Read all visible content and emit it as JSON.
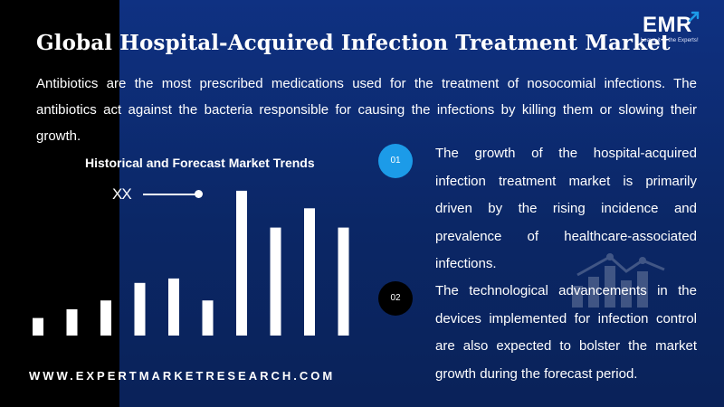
{
  "header": {
    "title": "Global Hospital-Acquired Infection Treatment Market",
    "intro": "Antibiotics are the most prescribed medications used for the treatment of nosocomial infections. The antibiotics act against the bacteria responsible for causing the infections by killing them or slowing their growth."
  },
  "logo": {
    "name": "EMR",
    "tagline": "Leave it to the Experts!"
  },
  "chart_data": {
    "type": "bar",
    "title": "Historical and Forecast Market Trends",
    "legend": [
      "XX"
    ],
    "series": [
      {
        "name": "XX",
        "values": [
          2,
          3,
          4,
          6,
          6.5,
          4,
          16.5,
          12.3,
          14.5,
          12.3
        ]
      }
    ],
    "xlabel": "",
    "ylabel": "",
    "ylim": [
      0,
      17
    ],
    "grid": false,
    "bar_color": "#ffffff"
  },
  "points": [
    {
      "number": "01",
      "text": "The growth of the hospital-acquired infection treatment market is primarily driven by the rising incidence and prevalence of healthcare-associated infections."
    },
    {
      "number": "02",
      "text": "The technological advancements in the devices implemented for infection control are also expected to bolster the market growth during the forecast period."
    }
  ],
  "footer": {
    "url": "WWW.EXPERTMARKETRESEARCH.COM"
  },
  "colors": {
    "background": "#0c2a6e",
    "left_band": "#000000",
    "badge_1": "#1c9be8",
    "badge_2": "#000000",
    "text": "#ffffff"
  }
}
